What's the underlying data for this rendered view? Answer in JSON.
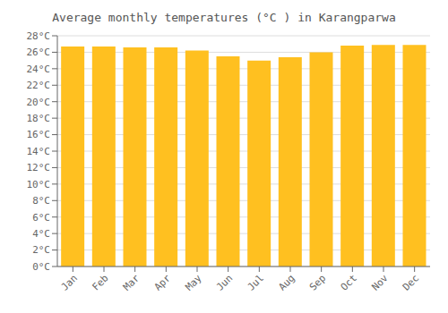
{
  "chart_data": {
    "type": "bar",
    "title": "Average monthly temperatures (°C ) in Karangparwa",
    "categories": [
      "Jan",
      "Feb",
      "Mar",
      "Apr",
      "May",
      "Jun",
      "Jul",
      "Aug",
      "Sep",
      "Oct",
      "Nov",
      "Dec"
    ],
    "values": [
      26.7,
      26.7,
      26.6,
      26.6,
      26.2,
      25.5,
      25.0,
      25.4,
      26.0,
      26.8,
      26.9,
      26.9
    ],
    "color": "#FFC020",
    "ylim": [
      0,
      28
    ],
    "yticks": [
      {
        "value": 0,
        "label": "0°C"
      },
      {
        "value": 2,
        "label": "2°C"
      },
      {
        "value": 4,
        "label": "4°C"
      },
      {
        "value": 6,
        "label": "6°C"
      },
      {
        "value": 8,
        "label": "8°C"
      },
      {
        "value": 10,
        "label": "10°C"
      },
      {
        "value": 12,
        "label": "12°C"
      },
      {
        "value": 14,
        "label": "14°C"
      },
      {
        "value": 16,
        "label": "16°C"
      },
      {
        "value": 18,
        "label": "18°C"
      },
      {
        "value": 20,
        "label": "20°C"
      },
      {
        "value": 22,
        "label": "22°C"
      },
      {
        "value": 24,
        "label": "24°C"
      },
      {
        "value": 26,
        "label": "26°C"
      },
      {
        "value": 28,
        "label": "28°C"
      }
    ],
    "grid": true
  }
}
